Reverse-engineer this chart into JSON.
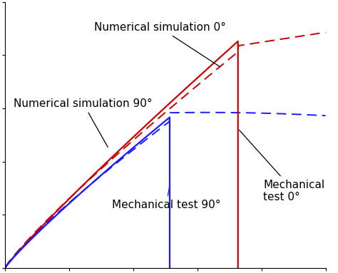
{
  "background_color": "#ffffff",
  "curves": {
    "num_sim_0": {
      "label": "Numerical simulation 0°",
      "color": "#cc0000",
      "linestyle": "dashed"
    },
    "num_sim_90": {
      "label": "Numerical simulation 90°",
      "color": "#1a1aff",
      "linestyle": "dashed"
    },
    "mech_test_0": {
      "label": "Mechanical\ntest 0°",
      "color": "#cc0000",
      "linestyle": "solid"
    },
    "mech_test_90": {
      "label": "Mechanical test 90°",
      "color": "#1a1aff",
      "linestyle": "solid"
    }
  },
  "xlim": [
    0,
    1.08
  ],
  "ylim": [
    0,
    1.05
  ],
  "fontsize": 11,
  "annot_fontsize": 11
}
